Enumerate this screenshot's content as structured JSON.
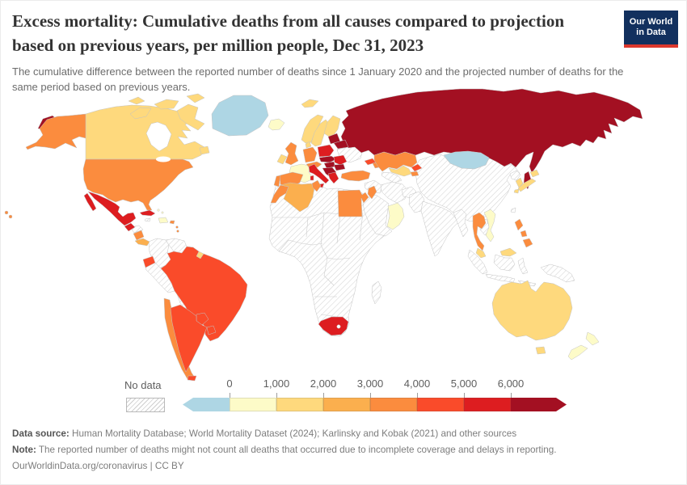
{
  "header": {
    "title": "Excess mortality: Cumulative deaths from all causes compared to projection based on previous years, per million people, Dec 31, 2023",
    "subtitle": "The cumulative difference between the reported number of deaths since 1 January 2020 and the projected number of deaths for the same period based on previous years.",
    "logo": {
      "line1": "Our World",
      "line2": "in Data",
      "bg_color": "#12305e",
      "accent_color": "#dc382d"
    }
  },
  "legend": {
    "no_data_label": "No data",
    "ticks": [
      "0",
      "1,000",
      "2,000",
      "3,000",
      "4,000",
      "5,000",
      "6,000"
    ],
    "segments": [
      {
        "bin": "below_0",
        "arrow": "left"
      },
      {
        "bin": "0_1000"
      },
      {
        "bin": "1000_2000"
      },
      {
        "bin": "2000_3000"
      },
      {
        "bin": "3000_4000"
      },
      {
        "bin": "4000_5000"
      },
      {
        "bin": "5000_6000"
      },
      {
        "bin": "above_6000",
        "arrow": "right"
      }
    ]
  },
  "footer": {
    "data_source_label": "Data source:",
    "data_source_text": " Human Mortality Database; World Mortality Dataset (2024); Karlinsky and Kobak (2021) and other sources",
    "note_label": "Note:",
    "note_text": " The reported number of deaths might not count all deaths that occurred due to incomplete coverage and delays in reporting.",
    "citation": "OurWorldinData.org/coronavirus | CC BY"
  },
  "chart_data": {
    "type": "heatmap",
    "subtype": "choropleth-world-map",
    "title": "Excess mortality: Cumulative deaths from all causes compared to projection based on previous years, per million people",
    "date": "Dec 31, 2023",
    "unit": "cumulative excess deaths per million people",
    "legend_position": "bottom",
    "legend_bins": [
      "<0",
      "0-1,000",
      "1,000-2,000",
      "2,000-3,000",
      "3,000-4,000",
      "4,000-5,000",
      "5,000-6,000",
      ">6,000",
      "No data"
    ],
    "palette": {
      "below_0": "#aed6e4",
      "0_1000": "#fdfbc8",
      "1000_2000": "#fed97d",
      "2000_3000": "#fbaf4e",
      "3000_4000": "#fb8c3e",
      "4000_5000": "#fa4b2a",
      "5000_6000": "#dd1d20",
      "above_6000": "#a31022",
      "no_data": "hatch"
    },
    "country_bins": {
      "Greenland": "below_0",
      "Mongolia": "below_0",
      "Iceland": "0_1000",
      "France": "0_1000",
      "Dominican Republic": "0_1000",
      "Bahamas": "0_1000",
      "Vietnam": "0_1000",
      "Oman and Yemen": "0_1000",
      "New Zealand": "0_1000",
      "Canada": "1000_2000",
      "Norway": "1000_2000",
      "Sweden": "1000_2000",
      "Finland": "1000_2000",
      "Denmark": "1000_2000",
      "Ireland": "1000_2000",
      "Uzbekistan": "1000_2000",
      "Japan": "1000_2000",
      "South Korea": "1000_2000",
      "Malaysia": "1000_2000",
      "Australia": "1000_2000",
      "French Guiana": "1000_2000",
      "Algeria": "2000_3000",
      "Costa Rica and Panama": "2000_3000",
      "United States": "3000_4000",
      "United Kingdom": "3000_4000",
      "Germany": "3000_4000",
      "Spain": "3000_4000",
      "Portugal": "3000_4000",
      "Switzerland and Austria": "3000_4000",
      "Turkey": "3000_4000",
      "Azerbaijan": "3000_4000",
      "Kazakhstan": "3000_4000",
      "Tajikistan": "3000_4000",
      "Morocco": "3000_4000",
      "Tunisia": "3000_4000",
      "Egypt": "3000_4000",
      "Israel and Lebanon": "3000_4000",
      "Thailand": "3000_4000",
      "Philippines": "3000_4000",
      "Chile": "3000_4000",
      "Nicaragua": "3000_4000",
      "Puerto Rico": "3000_4000",
      "Lesser Antilles": "3000_4000",
      "Brazil": "4000_5000",
      "Argentina": "4000_5000",
      "Paraguay": "4000_5000",
      "Uruguay": "4000_5000",
      "Ecuador": "4000_5000",
      "Georgia": "4000_5000",
      "Kyrgyzstan": "4000_5000",
      "Mexico": "5000_6000",
      "Cuba": "5000_6000",
      "Guatemala": "5000_6000",
      "Italy": "5000_6000",
      "Poland": "5000_6000",
      "Romania": "5000_6000",
      "Greece": "5000_6000",
      "South Africa": "5000_6000",
      "Russia": "above_6000",
      "Czechia and Slovakia": "above_6000",
      "Hungary": "above_6000",
      "Bulgaria": "above_6000",
      "Serbia and Western Balkans": "above_6000",
      "Baltic states": "above_6000",
      "Belarus": "above_6000",
      "Ukraine": "no_data",
      "China": "no_data",
      "India": "no_data",
      "Pakistan": "no_data",
      "Afghanistan": "no_data",
      "Iran": "no_data",
      "Iraq and Syria": "no_data",
      "Saudi Arabia": "no_data",
      "Turkmenistan": "no_data",
      "Sub-Saharan Africa": "no_data",
      "Madagascar": "no_data",
      "Colombia": "no_data",
      "Venezuela": "no_data",
      "Peru": "no_data",
      "Bolivia": "no_data",
      "Guyana and Suriname": "no_data",
      "Honduras": "no_data",
      "Jamaica": "no_data",
      "Myanmar": "no_data",
      "Laos and Cambodia": "no_data",
      "Indonesia": "no_data",
      "Papua New Guinea": "no_data",
      "North Korea": "no_data",
      "Taiwan": "no_data"
    }
  }
}
